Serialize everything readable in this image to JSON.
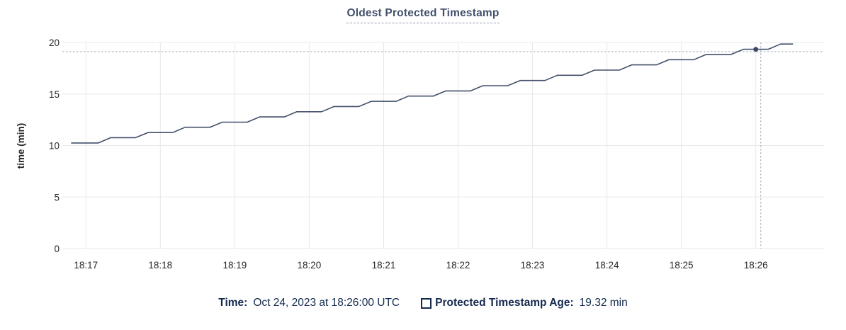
{
  "title": "Oldest Protected Timestamp",
  "legend": {
    "time_label": "Time:",
    "time_value": "Oct 24, 2023 at 18:26:00 UTC",
    "series_label": "Protected Timestamp Age:",
    "series_value": "19.32 min"
  },
  "colors": {
    "series_line": "#43506b",
    "hover_dot": "#394763",
    "crosshair": "#a9b6c2",
    "gridline": "#e8e8e8",
    "title_text": "#42506c",
    "tick_text": "#26282d",
    "legend_text": "#14294e",
    "background": "#ffffff"
  },
  "chart_data": {
    "type": "line",
    "title": "Oldest Protected Timestamp",
    "xlabel": "",
    "ylabel": "time (min)",
    "ylim": [
      0,
      20
    ],
    "yticks": [
      0,
      5,
      10,
      15,
      20
    ],
    "x_unit": "seconds after 18:17",
    "xlim": [
      -19,
      595
    ],
    "xticks": [
      {
        "t": 0,
        "label": "18:17"
      },
      {
        "t": 60,
        "label": "18:18"
      },
      {
        "t": 120,
        "label": "18:19"
      },
      {
        "t": 180,
        "label": "18:20"
      },
      {
        "t": 240,
        "label": "18:21"
      },
      {
        "t": 300,
        "label": "18:22"
      },
      {
        "t": 360,
        "label": "18:23"
      },
      {
        "t": 420,
        "label": "18:24"
      },
      {
        "t": 480,
        "label": "18:25"
      },
      {
        "t": 540,
        "label": "18:26"
      }
    ],
    "grid": true,
    "legend_position": "bottom",
    "series": [
      {
        "name": "Protected Timestamp Age",
        "points": [
          [
            -12,
            10.25
          ],
          [
            10,
            10.25
          ],
          [
            20,
            10.76
          ],
          [
            40,
            10.76
          ],
          [
            50,
            11.26
          ],
          [
            70,
            11.26
          ],
          [
            80,
            11.77
          ],
          [
            100,
            11.77
          ],
          [
            110,
            12.27
          ],
          [
            130,
            12.27
          ],
          [
            140,
            12.78
          ],
          [
            160,
            12.78
          ],
          [
            170,
            13.28
          ],
          [
            190,
            13.28
          ],
          [
            200,
            13.79
          ],
          [
            220,
            13.79
          ],
          [
            230,
            14.29
          ],
          [
            250,
            14.29
          ],
          [
            260,
            14.8
          ],
          [
            280,
            14.8
          ],
          [
            290,
            15.3
          ],
          [
            310,
            15.3
          ],
          [
            320,
            15.81
          ],
          [
            340,
            15.81
          ],
          [
            350,
            16.31
          ],
          [
            370,
            16.31
          ],
          [
            380,
            16.82
          ],
          [
            400,
            16.82
          ],
          [
            410,
            17.32
          ],
          [
            430,
            17.32
          ],
          [
            440,
            17.83
          ],
          [
            460,
            17.83
          ],
          [
            470,
            18.33
          ],
          [
            490,
            18.33
          ],
          [
            500,
            18.84
          ],
          [
            520,
            18.84
          ],
          [
            530,
            19.34
          ],
          [
            550,
            19.34
          ],
          [
            560,
            19.85
          ],
          [
            570,
            19.85
          ]
        ]
      }
    ],
    "crosshair": {
      "vline_t": 544,
      "hline_value": 19.11,
      "dot": [
        540,
        19.34
      ]
    },
    "hover_readout": {
      "time": "Oct 24, 2023 at 18:26:00 UTC",
      "value": 19.32,
      "unit": "min"
    }
  }
}
